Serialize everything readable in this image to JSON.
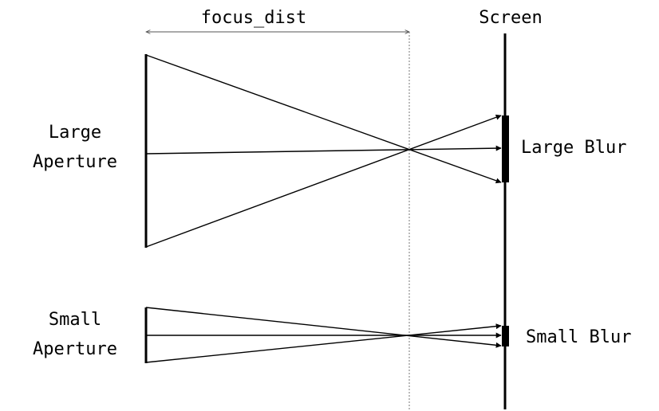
{
  "labels": {
    "focus_dist": "focus_dist",
    "screen": "Screen",
    "large_aperture_line1": "Large",
    "large_aperture_line2": "Aperture",
    "large_blur": "Large Blur",
    "small_aperture_line1": "Small",
    "small_aperture_line2": "Aperture",
    "small_blur": "Small Blur"
  },
  "colors": {
    "ink": "#000000",
    "guide": "#555555",
    "background": "#ffffff"
  }
}
